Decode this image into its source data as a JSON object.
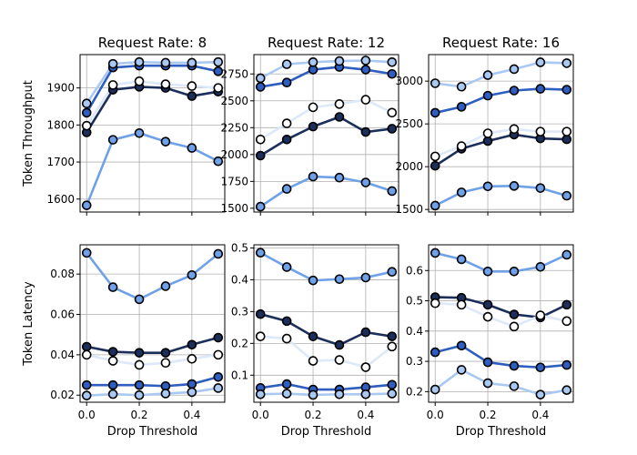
{
  "chart_data": {
    "type": "line",
    "layout": "2x3 grid of subplots, shared x-axis (Drop Threshold) per column",
    "x": [
      0.0,
      0.1,
      0.2,
      0.3,
      0.4,
      0.5
    ],
    "xlabel": "Drop Threshold",
    "xticks": [
      "0.0",
      "0.2",
      "0.4"
    ],
    "xlim": [
      -0.025,
      0.525
    ],
    "grid": true,
    "legend": "none",
    "marker": "circle with black edge",
    "series_colors": [
      "#6ea1e8",
      "#2d5ec0",
      "#1b2f5a",
      "#ffffff",
      "#a9c9f2"
    ],
    "row_ylabels": [
      "Token Throughput",
      "Token Latency"
    ],
    "column_titles": [
      "Request Rate: 8",
      "Request Rate: 12",
      "Request Rate: 16"
    ],
    "panels": [
      {
        "row": 0,
        "col": 0,
        "ylim": [
          1565,
          1990
        ],
        "yticks": [
          "1600",
          "1700",
          "1800",
          "1900"
        ],
        "series": [
          {
            "values": [
              1583,
              1760,
              1778,
              1755,
              1738,
              1702
            ],
            "color": "#6ea1e8",
            "marker_fill": "#6ea1e8"
          },
          {
            "values": [
              1833,
              1955,
              1960,
              1960,
              1960,
              1945
            ],
            "color": "#2d5ec0",
            "marker_fill": "#2d5ec0"
          },
          {
            "values": [
              1780,
              1895,
              1903,
              1900,
              1878,
              1890
            ],
            "color": "#1b2f5a",
            "marker_fill": "#1b2f5a"
          },
          {
            "values": [
              1798,
              1908,
              1918,
              1910,
              1905,
              1900
            ],
            "color": "#dde8f8",
            "marker_fill": "#ffffff"
          },
          {
            "values": [
              1858,
              1965,
              1970,
              1968,
              1968,
              1970
            ],
            "color": "#a9c9f2",
            "marker_fill": "#a9c9f2"
          }
        ]
      },
      {
        "row": 0,
        "col": 1,
        "ylim": [
          1465,
          2930
        ],
        "yticks": [
          "1500",
          "1750",
          "2000",
          "2250",
          "2500",
          "2750"
        ],
        "series": [
          {
            "values": [
              1515,
              1680,
              1795,
              1785,
              1740,
              1660
            ],
            "color": "#6ea1e8",
            "marker_fill": "#6ea1e8"
          },
          {
            "values": [
              2630,
              2670,
              2790,
              2815,
              2790,
              2750
            ],
            "color": "#2d5ec0",
            "marker_fill": "#2d5ec0"
          },
          {
            "values": [
              1990,
              2140,
              2260,
              2350,
              2210,
              2240
            ],
            "color": "#1b2f5a",
            "marker_fill": "#1b2f5a"
          },
          {
            "values": [
              2140,
              2290,
              2440,
              2470,
              2510,
              2390
            ],
            "color": "#dde8f8",
            "marker_fill": "#ffffff"
          },
          {
            "values": [
              2710,
              2840,
              2860,
              2870,
              2875,
              2860
            ],
            "color": "#a9c9f2",
            "marker_fill": "#a9c9f2"
          }
        ]
      },
      {
        "row": 0,
        "col": 2,
        "ylim": [
          1470,
          3310
        ],
        "yticks": [
          "1500",
          "2000",
          "2500",
          "3000"
        ],
        "series": [
          {
            "values": [
              1545,
              1700,
              1770,
              1775,
              1750,
              1660
            ],
            "color": "#6ea1e8",
            "marker_fill": "#6ea1e8"
          },
          {
            "values": [
              2630,
              2700,
              2830,
              2890,
              2910,
              2900
            ],
            "color": "#2d5ec0",
            "marker_fill": "#2d5ec0"
          },
          {
            "values": [
              2010,
              2210,
              2300,
              2375,
              2330,
              2320
            ],
            "color": "#1b2f5a",
            "marker_fill": "#1b2f5a"
          },
          {
            "values": [
              2120,
              2240,
              2390,
              2440,
              2410,
              2410
            ],
            "color": "#dde8f8",
            "marker_fill": "#ffffff"
          },
          {
            "values": [
              2975,
              2935,
              3070,
              3140,
              3220,
              3210
            ],
            "color": "#a9c9f2",
            "marker_fill": "#a9c9f2"
          }
        ]
      },
      {
        "row": 1,
        "col": 0,
        "ylim": [
          0.0165,
          0.0945
        ],
        "yticks": [
          "0.02",
          "0.04",
          "0.06",
          "0.08"
        ],
        "series": [
          {
            "values": [
              0.0905,
              0.0735,
              0.0675,
              0.074,
              0.0795,
              0.09
            ],
            "color": "#6ea1e8",
            "marker_fill": "#6ea1e8"
          },
          {
            "values": [
              0.025,
              0.025,
              0.025,
              0.0245,
              0.0255,
              0.029
            ],
            "color": "#2d5ec0",
            "marker_fill": "#2d5ec0"
          },
          {
            "values": [
              0.044,
              0.0415,
              0.041,
              0.041,
              0.045,
              0.0485
            ],
            "color": "#1b2f5a",
            "marker_fill": "#1b2f5a"
          },
          {
            "values": [
              0.04,
              0.037,
              0.035,
              0.036,
              0.038,
              0.04
            ],
            "color": "#dde8f8",
            "marker_fill": "#ffffff"
          },
          {
            "values": [
              0.0198,
              0.0205,
              0.02,
              0.0208,
              0.0215,
              0.0235
            ],
            "color": "#a9c9f2",
            "marker_fill": "#a9c9f2"
          }
        ]
      },
      {
        "row": 1,
        "col": 1,
        "ylim": [
          0.015,
          0.51
        ],
        "yticks": [
          "0.1",
          "0.2",
          "0.3",
          "0.4",
          "0.5"
        ],
        "series": [
          {
            "values": [
              0.485,
              0.44,
              0.398,
              0.402,
              0.407,
              0.425
            ],
            "color": "#6ea1e8",
            "marker_fill": "#6ea1e8"
          },
          {
            "values": [
              0.06,
              0.072,
              0.055,
              0.055,
              0.062,
              0.07
            ],
            "color": "#2d5ec0",
            "marker_fill": "#2d5ec0"
          },
          {
            "values": [
              0.292,
              0.27,
              0.222,
              0.195,
              0.235,
              0.222
            ],
            "color": "#1b2f5a",
            "marker_fill": "#1b2f5a"
          },
          {
            "values": [
              0.222,
              0.215,
              0.145,
              0.148,
              0.125,
              0.19
            ],
            "color": "#dde8f8",
            "marker_fill": "#ffffff"
          },
          {
            "values": [
              0.04,
              0.042,
              0.038,
              0.04,
              0.04,
              0.042
            ],
            "color": "#a9c9f2",
            "marker_fill": "#a9c9f2"
          }
        ]
      },
      {
        "row": 1,
        "col": 2,
        "ylim": [
          0.165,
          0.685
        ],
        "yticks": [
          "0.2",
          "0.3",
          "0.4",
          "0.5",
          "0.6"
        ],
        "series": [
          {
            "values": [
              0.658,
              0.637,
              0.597,
              0.597,
              0.612,
              0.652
            ],
            "color": "#6ea1e8",
            "marker_fill": "#6ea1e8"
          },
          {
            "values": [
              0.33,
              0.352,
              0.297,
              0.285,
              0.28,
              0.288
            ],
            "color": "#2d5ec0",
            "marker_fill": "#2d5ec0"
          },
          {
            "values": [
              0.512,
              0.51,
              0.487,
              0.455,
              0.445,
              0.487
            ],
            "color": "#1b2f5a",
            "marker_fill": "#1b2f5a"
          },
          {
            "values": [
              0.492,
              0.487,
              0.447,
              0.415,
              0.452,
              0.433
            ],
            "color": "#dde8f8",
            "marker_fill": "#ffffff"
          },
          {
            "values": [
              0.207,
              0.272,
              0.228,
              0.218,
              0.19,
              0.205
            ],
            "color": "#a9c9f2",
            "marker_fill": "#a9c9f2"
          }
        ]
      }
    ]
  }
}
